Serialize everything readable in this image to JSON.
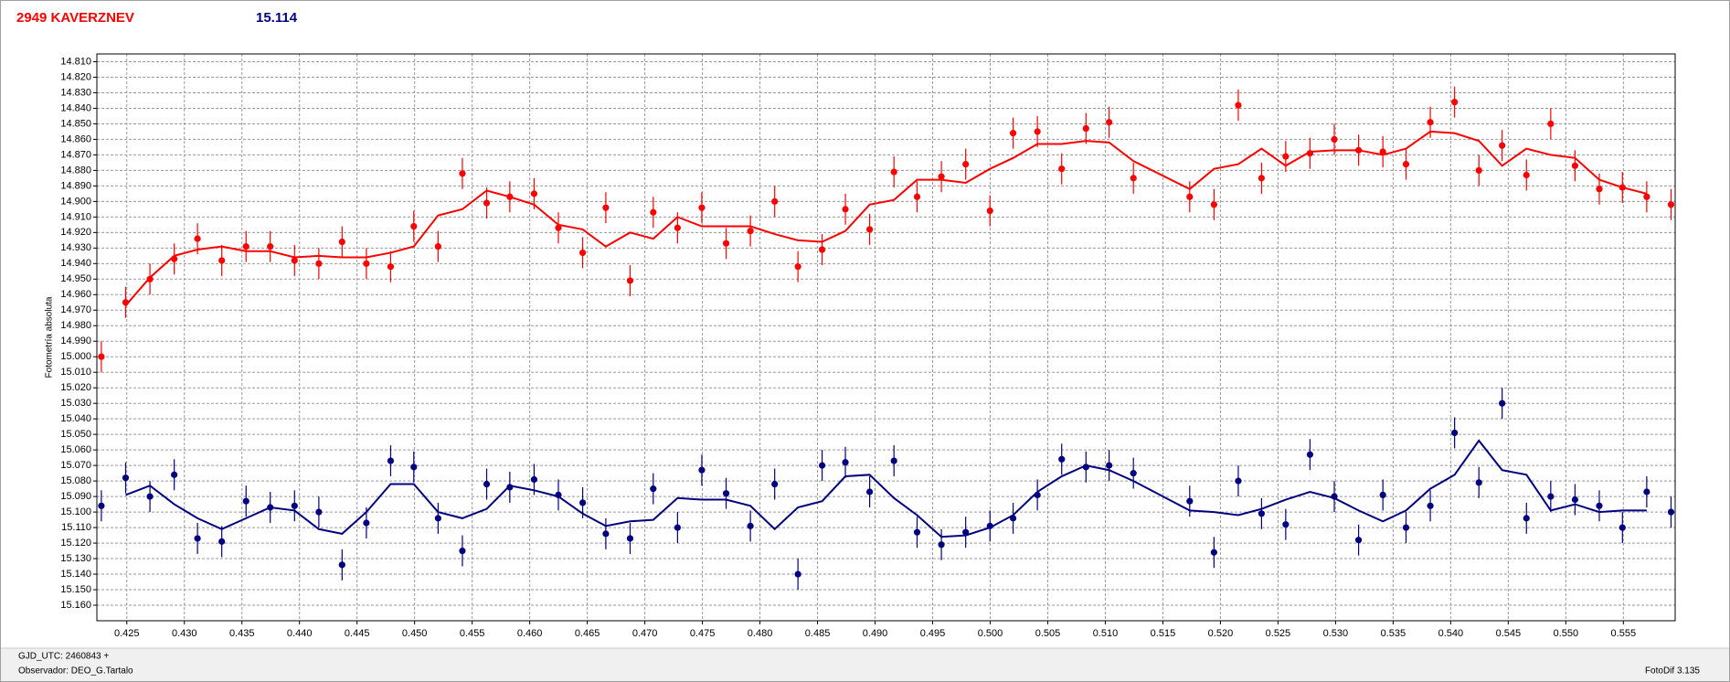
{
  "chart_data": {
    "type": "scatter",
    "object_name": "2949 KAVERZNEV",
    "reference_mag": "15.114",
    "y_label": "Fotometría absoluta",
    "footer_date": "GJD_UTC: 2460843 +",
    "footer_observer": "Observador: DEO_G.Tartalo",
    "footer_software": "FotoDif 3.135",
    "grid": true,
    "xlim": [
      0.4224,
      0.5595
    ],
    "ylim": [
      15.17,
      14.805
    ],
    "xticks": [
      0.425,
      {
        "value": 0.43,
        "label": "0.430"
      },
      0.435,
      {
        "value": 0.44,
        "label": "0.440"
      },
      0.445,
      {
        "value": 0.45,
        "label": "0.450"
      },
      0.455,
      {
        "value": 0.46,
        "label": "0.460"
      },
      0.465,
      {
        "value": 0.47,
        "label": "0.470"
      },
      0.475,
      {
        "value": 0.48,
        "label": "0.480"
      },
      0.485,
      {
        "value": 0.49,
        "label": "0.490"
      },
      0.495,
      {
        "value": 0.5,
        "label": "0.500"
      },
      0.505,
      {
        "value": 0.51,
        "label": "0.510"
      },
      0.515,
      {
        "value": 0.52,
        "label": "0.520"
      },
      0.525,
      {
        "value": 0.53,
        "label": "0.530"
      },
      0.535,
      {
        "value": 0.54,
        "label": "0.540"
      },
      0.545,
      {
        "value": 0.55,
        "label": "0.550"
      },
      0.555
    ],
    "yticks": [
      {
        "value": 14.81,
        "label": "14.810"
      },
      {
        "value": 14.82,
        "label": "14.820"
      },
      {
        "value": 14.83,
        "label": "14.830"
      },
      {
        "value": 14.84,
        "label": "14.840"
      },
      {
        "value": 14.85,
        "label": "14.850"
      },
      {
        "value": 14.86,
        "label": "14.860"
      },
      {
        "value": 14.87,
        "label": "14.870"
      },
      {
        "value": 14.88,
        "label": "14.880"
      },
      {
        "value": 14.89,
        "label": "14.890"
      },
      {
        "value": 14.9,
        "label": "14.900"
      },
      {
        "value": 14.91,
        "label": "14.910"
      },
      {
        "value": 14.92,
        "label": "14.920"
      },
      {
        "value": 14.93,
        "label": "14.930"
      },
      {
        "value": 14.94,
        "label": "14.940"
      },
      {
        "value": 14.95,
        "label": "14.950"
      },
      {
        "value": 14.96,
        "label": "14.960"
      },
      {
        "value": 14.97,
        "label": "14.970"
      },
      {
        "value": 14.98,
        "label": "14.980"
      },
      {
        "value": 14.99,
        "label": "14.990"
      },
      {
        "value": 15.0,
        "label": "15.000"
      },
      {
        "value": 15.01,
        "label": "15.010"
      },
      {
        "value": 15.02,
        "label": "15.020"
      },
      {
        "value": 15.03,
        "label": "15.030"
      },
      {
        "value": 15.04,
        "label": "15.040"
      },
      {
        "value": 15.05,
        "label": "15.050"
      },
      {
        "value": 15.06,
        "label": "15.060"
      },
      {
        "value": 15.07,
        "label": "15.070"
      },
      {
        "value": 15.08,
        "label": "15.080"
      },
      {
        "value": 15.09,
        "label": "15.090"
      },
      {
        "value": 15.1,
        "label": "15.100"
      },
      {
        "value": 15.11,
        "label": "15.110"
      },
      {
        "value": 15.12,
        "label": "15.120"
      },
      {
        "value": 15.13,
        "label": "15.130"
      },
      {
        "value": 15.14,
        "label": "15.140"
      },
      {
        "value": 15.15,
        "label": "15.150"
      },
      {
        "value": 15.16,
        "label": "15.160"
      }
    ],
    "x": [
      0.42279,
      0.4249,
      0.42701,
      0.42912,
      0.43114,
      0.43325,
      0.43536,
      0.43746,
      0.43957,
      0.44168,
      0.4437,
      0.44581,
      0.44792,
      0.44993,
      0.45204,
      0.45415,
      0.45626,
      0.45827,
      0.46038,
      0.46249,
      0.4646,
      0.46661,
      0.46872,
      0.47073,
      0.47284,
      0.47495,
      0.47706,
      0.47917,
      0.48128,
      0.4833,
      0.4854,
      0.48742,
      0.48953,
      0.49164,
      0.49365,
      0.49576,
      0.49787,
      0.49998,
      0.50199,
      0.5041,
      0.50621,
      0.50832,
      0.51033,
      0.51244,
      0.51733,
      0.51944,
      0.52155,
      0.52357,
      0.52567,
      0.52778,
      0.52989,
      0.532,
      0.53411,
      0.53612,
      0.53823,
      0.54034,
      0.54245,
      0.54447,
      0.54658,
      0.54869,
      0.5508,
      0.55291,
      0.55492,
      0.55703,
      0.55914
    ],
    "series": [
      {
        "color": "#ff0000",
        "error": 0.01,
        "values": [
          15.0,
          14.965,
          14.95,
          14.937,
          14.924,
          14.938,
          14.929,
          14.929,
          14.938,
          14.94,
          14.926,
          14.94,
          14.942,
          14.916,
          14.929,
          14.882,
          14.901,
          14.897,
          14.895,
          14.917,
          14.933,
          14.904,
          14.951,
          14.907,
          14.917,
          14.904,
          14.927,
          14.919,
          14.9,
          14.942,
          14.931,
          14.905,
          14.918,
          14.881,
          14.897,
          14.884,
          14.876,
          14.906,
          14.856,
          14.855,
          14.879,
          14.853,
          14.849,
          14.885,
          14.897,
          14.902,
          14.838,
          14.885,
          14.871,
          14.869,
          14.86,
          14.867,
          14.868,
          14.876,
          14.849,
          14.836,
          14.88,
          14.864,
          14.883,
          14.85,
          14.877,
          14.892,
          14.891,
          14.897,
          14.902
        ],
        "trend": [
          null,
          14.967,
          14.949,
          14.935,
          14.931,
          14.929,
          14.932,
          14.932,
          14.936,
          14.935,
          14.936,
          14.936,
          14.933,
          14.929,
          14.909,
          14.905,
          14.893,
          14.897,
          14.902,
          14.915,
          14.918,
          14.929,
          14.92,
          14.924,
          14.91,
          14.916,
          14.916,
          14.916,
          14.921,
          14.925,
          14.926,
          14.919,
          14.902,
          14.899,
          14.886,
          14.886,
          14.888,
          14.879,
          14.872,
          14.863,
          14.863,
          14.861,
          14.862,
          14.874,
          14.892,
          14.879,
          14.876,
          14.866,
          14.877,
          14.868,
          14.867,
          14.867,
          14.87,
          14.866,
          14.855,
          14.856,
          14.861,
          14.877,
          14.866,
          14.87,
          14.872,
          14.886,
          14.891,
          14.895,
          null
        ]
      },
      {
        "color": "#000080",
        "error": 0.01,
        "values": [
          15.096,
          15.078,
          15.09,
          15.076,
          15.117,
          15.119,
          15.093,
          15.097,
          15.096,
          15.1,
          15.134,
          15.107,
          15.067,
          15.071,
          15.104,
          15.125,
          15.082,
          15.084,
          15.079,
          15.089,
          15.094,
          15.114,
          15.117,
          15.085,
          15.11,
          15.073,
          15.088,
          15.109,
          15.082,
          15.14,
          15.07,
          15.068,
          15.087,
          15.067,
          15.113,
          15.121,
          15.113,
          15.109,
          15.104,
          15.089,
          15.066,
          15.071,
          15.07,
          15.075,
          15.093,
          15.126,
          15.08,
          15.101,
          15.108,
          15.063,
          15.09,
          15.118,
          15.089,
          15.11,
          15.096,
          15.049,
          15.081,
          15.03,
          15.104,
          15.09,
          15.092,
          15.096,
          15.11,
          15.087,
          15.1
        ],
        "trend": [
          null,
          15.089,
          15.083,
          15.095,
          15.104,
          15.111,
          15.104,
          15.097,
          15.099,
          15.111,
          15.114,
          15.1,
          15.082,
          15.082,
          15.1,
          15.104,
          15.098,
          15.083,
          15.086,
          15.09,
          15.101,
          15.109,
          15.106,
          15.105,
          15.091,
          15.092,
          15.092,
          15.096,
          15.111,
          15.097,
          15.093,
          15.077,
          15.076,
          15.091,
          15.102,
          15.116,
          15.115,
          15.11,
          15.102,
          15.087,
          15.077,
          15.07,
          15.073,
          15.08,
          15.099,
          15.1,
          15.102,
          15.098,
          15.092,
          15.087,
          15.091,
          15.099,
          15.106,
          15.099,
          15.085,
          15.076,
          15.054,
          15.073,
          15.076,
          15.099,
          15.095,
          15.1,
          15.099,
          15.099,
          null
        ]
      }
    ]
  }
}
